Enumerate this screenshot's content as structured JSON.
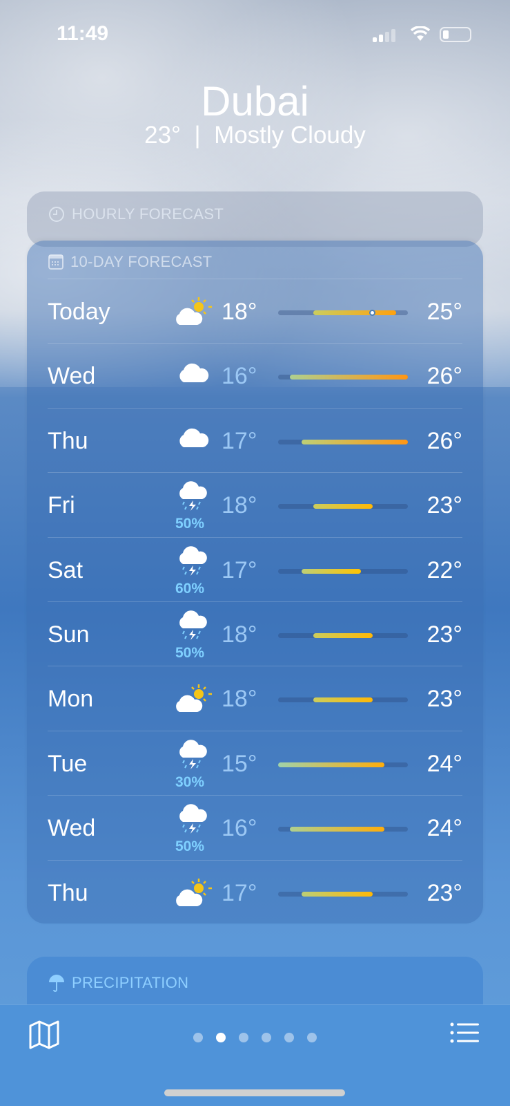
{
  "status": {
    "time": "11:49"
  },
  "header": {
    "city": "Dubai",
    "temp": "23°",
    "separator": "|",
    "condition": "Mostly Cloudy"
  },
  "hourly": {
    "title": "HOURLY FORECAST",
    "icon": "clock-icon"
  },
  "ten_day": {
    "title": "10-DAY FORECAST",
    "icon": "calendar-icon",
    "range_min": 15,
    "range_max": 26,
    "current_temp": 23,
    "days": [
      {
        "day": "Today",
        "icon": "partly-sunny",
        "precip": "",
        "low": "18°",
        "high": "25°",
        "lo": 18,
        "hi": 25
      },
      {
        "day": "Wed",
        "icon": "cloud",
        "precip": "",
        "low": "16°",
        "high": "26°",
        "lo": 16,
        "hi": 26
      },
      {
        "day": "Thu",
        "icon": "cloud",
        "precip": "",
        "low": "17°",
        "high": "26°",
        "lo": 17,
        "hi": 26
      },
      {
        "day": "Fri",
        "icon": "thunderstorm",
        "precip": "50%",
        "low": "18°",
        "high": "23°",
        "lo": 18,
        "hi": 23
      },
      {
        "day": "Sat",
        "icon": "thunderstorm",
        "precip": "60%",
        "low": "17°",
        "high": "22°",
        "lo": 17,
        "hi": 22
      },
      {
        "day": "Sun",
        "icon": "thunderstorm",
        "precip": "50%",
        "low": "18°",
        "high": "23°",
        "lo": 18,
        "hi": 23
      },
      {
        "day": "Mon",
        "icon": "partly-sunny",
        "precip": "",
        "low": "18°",
        "high": "23°",
        "lo": 18,
        "hi": 23
      },
      {
        "day": "Tue",
        "icon": "thunderstorm",
        "precip": "30%",
        "low": "15°",
        "high": "24°",
        "lo": 15,
        "hi": 24
      },
      {
        "day": "Wed",
        "icon": "thunderstorm",
        "precip": "50%",
        "low": "16°",
        "high": "24°",
        "lo": 16,
        "hi": 24
      },
      {
        "day": "Thu",
        "icon": "partly-sunny",
        "precip": "",
        "low": "17°",
        "high": "23°",
        "lo": 17,
        "hi": 23
      }
    ]
  },
  "precipitation": {
    "title": "PRECIPITATION",
    "icon": "umbrella-icon"
  },
  "tabbar": {
    "pages": 6,
    "active_page": 1
  }
}
